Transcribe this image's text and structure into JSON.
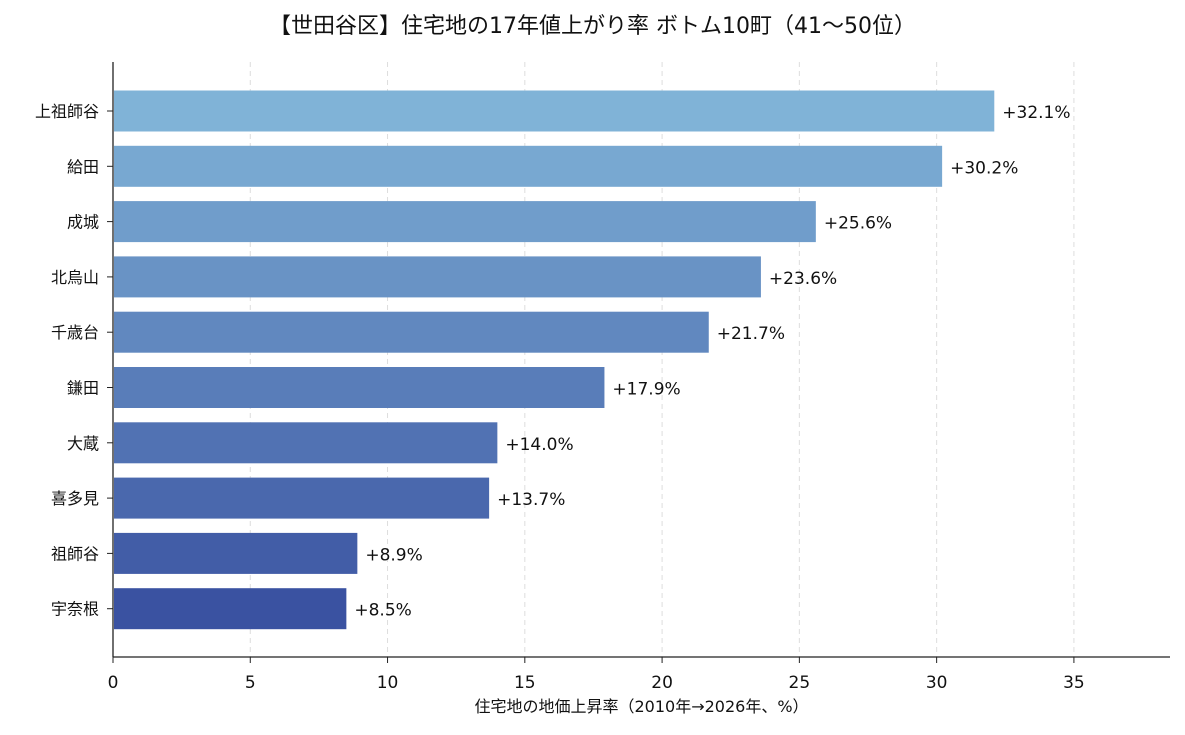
{
  "chart_data": {
    "type": "bar",
    "orientation": "horizontal",
    "title": "【世田谷区】住宅地の17年値上がり率 ボトム10町（41〜50位）",
    "xlabel": "住宅地の地価上昇率（2010年→2026年、%）",
    "ylabel": "",
    "xlim": [
      0,
      38.5
    ],
    "xticks": [
      0,
      5,
      10,
      15,
      20,
      25,
      30,
      35
    ],
    "grid": "vertical-dashed",
    "categories": [
      "上祖師谷",
      "給田",
      "成城",
      "北烏山",
      "千歳台",
      "鎌田",
      "大蔵",
      "喜多見",
      "祖師谷",
      "宇奈根"
    ],
    "values": [
      32.1,
      30.2,
      25.6,
      23.6,
      21.7,
      17.9,
      14.0,
      13.7,
      8.9,
      8.5
    ],
    "data_labels": [
      "+32.1%",
      "+30.2%",
      "+25.6%",
      "+23.6%",
      "+21.7%",
      "+17.9%",
      "+14.0%",
      "+13.7%",
      "+8.9%",
      "+8.5%"
    ],
    "colors": {
      "gradient_top": "#80b3d7",
      "gradient_bottom": "#3a52a1",
      "grid": "#dddddd",
      "axis": "#222222"
    }
  }
}
